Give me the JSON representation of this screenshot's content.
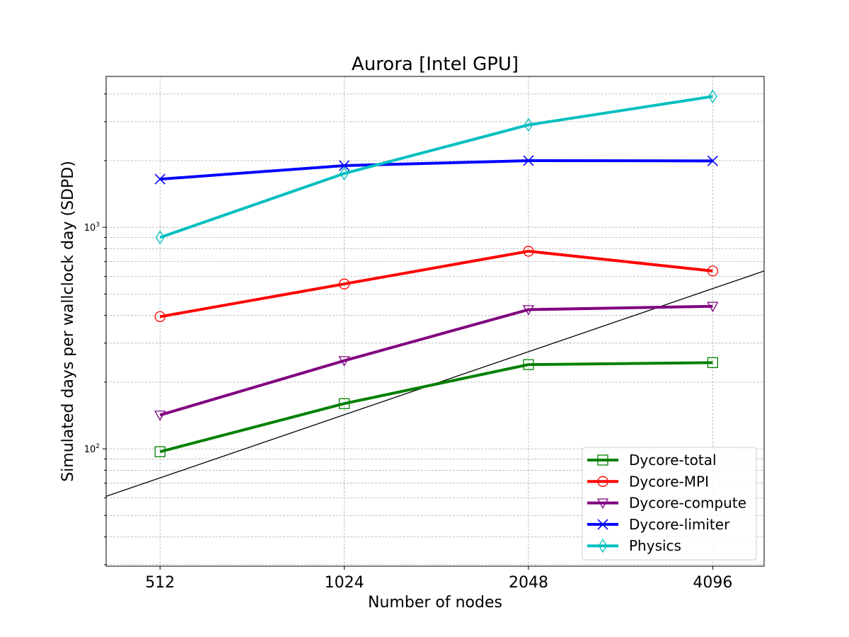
{
  "chart_data": {
    "type": "line",
    "title": "Aurora [Intel GPU]",
    "xlabel": "Number of nodes",
    "ylabel": "Simulated days per wallclock day (SDPD)",
    "x_scale": "log2",
    "y_scale": "log10",
    "x": [
      512,
      1024,
      2048,
      4096
    ],
    "x_tick_labels": [
      "512",
      "1024",
      "2048",
      "4096"
    ],
    "y_tick_labels": [
      {
        "value": 100,
        "base": "10",
        "exp": "2"
      },
      {
        "value": 1000,
        "base": "10",
        "exp": "3"
      }
    ],
    "xlim": [
      418,
      4970
    ],
    "ylim": [
      29.5,
      4800
    ],
    "grid": true,
    "legend_position": "lower-right",
    "series": [
      {
        "name": "Dycore-total",
        "color": "#008000",
        "marker": "square",
        "values": [
          97,
          160,
          240,
          245
        ]
      },
      {
        "name": "Dycore-MPI",
        "color": "#ff0000",
        "marker": "circle",
        "values": [
          395,
          555,
          780,
          635
        ]
      },
      {
        "name": "Dycore-compute",
        "color": "#800080",
        "marker": "triangle-down",
        "values": [
          142,
          250,
          425,
          440
        ]
      },
      {
        "name": "Dycore-limiter",
        "color": "#0000ff",
        "marker": "x",
        "values": [
          1650,
          1900,
          2000,
          1995
        ]
      },
      {
        "name": "Physics",
        "color": "#00bfbf",
        "marker": "diamond",
        "values": [
          900,
          1750,
          2900,
          3900
        ]
      }
    ],
    "reference_line": {
      "color": "#000000",
      "points": [
        [
          418,
          61
        ],
        [
          4970,
          635
        ]
      ]
    }
  }
}
